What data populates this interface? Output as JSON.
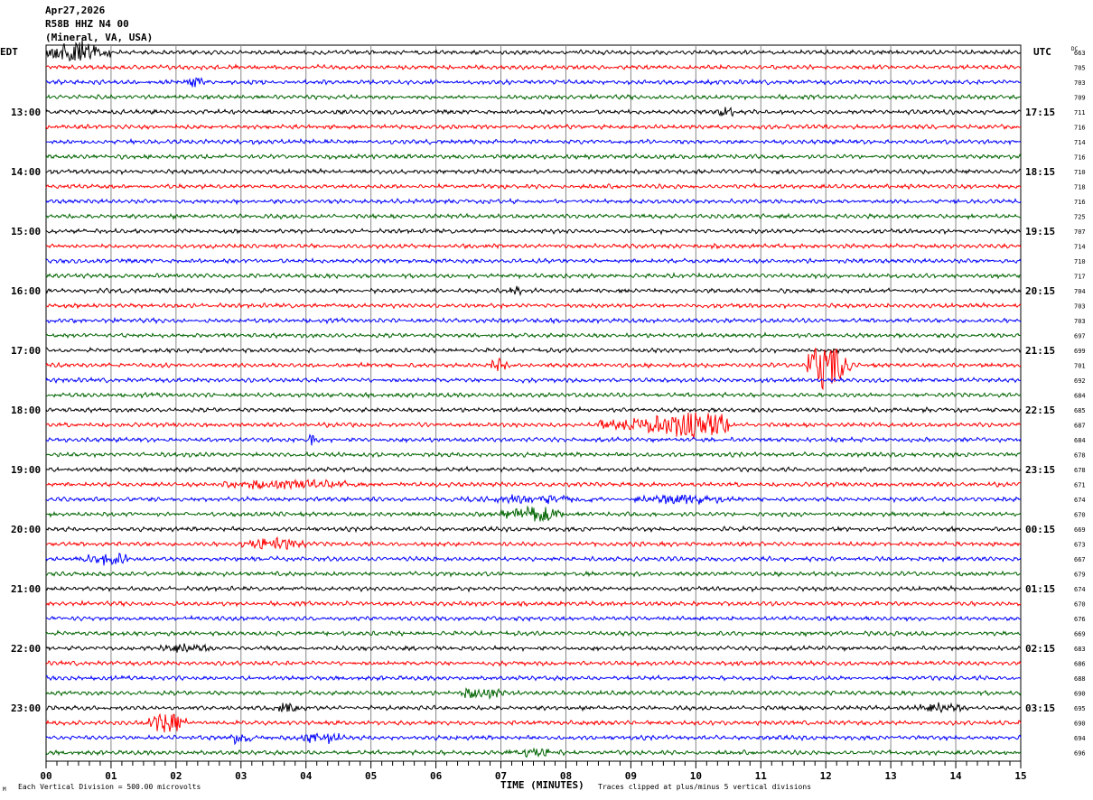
{
  "header": {
    "date": "Apr27,2026",
    "station": "R58B HHZ N4 00",
    "location": "(Mineral, VA, USA)",
    "left_tz": "EDT",
    "right_tz": "UTC",
    "dc_label": "DC"
  },
  "footer": {
    "scale_text": "Each Vertical Division =  500.00 microvolts",
    "xlabel": "TIME (MINUTES)",
    "clip_text": "Traces clipped at plus/minus 5 vertical divisions",
    "corner_mark": "M"
  },
  "chart_data": {
    "type": "line",
    "title": "R58B HHZ N4 00 (Mineral, VA, USA) Apr27,2026",
    "xlabel": "TIME (MINUTES)",
    "xlim": [
      0,
      15
    ],
    "x_ticks": [
      "00",
      "01",
      "02",
      "03",
      "04",
      "05",
      "06",
      "07",
      "08",
      "09",
      "10",
      "11",
      "12",
      "13",
      "14",
      "15"
    ],
    "trace_minutes": 15,
    "trace_count": 48,
    "colors": [
      "#000000",
      "#ff0000",
      "#0000ff",
      "#006400"
    ],
    "left_labels": [
      {
        "trace": 4,
        "text": "13:00"
      },
      {
        "trace": 8,
        "text": "14:00"
      },
      {
        "trace": 12,
        "text": "15:00"
      },
      {
        "trace": 16,
        "text": "16:00"
      },
      {
        "trace": 20,
        "text": "17:00"
      },
      {
        "trace": 24,
        "text": "18:00"
      },
      {
        "trace": 28,
        "text": "19:00"
      },
      {
        "trace": 32,
        "text": "20:00"
      },
      {
        "trace": 36,
        "text": "21:00"
      },
      {
        "trace": 40,
        "text": "22:00"
      },
      {
        "trace": 44,
        "text": "23:00"
      }
    ],
    "right_labels": [
      {
        "trace": 4,
        "text": "17:15"
      },
      {
        "trace": 8,
        "text": "18:15"
      },
      {
        "trace": 12,
        "text": "19:15"
      },
      {
        "trace": 16,
        "text": "20:15"
      },
      {
        "trace": 20,
        "text": "21:15"
      },
      {
        "trace": 24,
        "text": "22:15"
      },
      {
        "trace": 28,
        "text": "23:15"
      },
      {
        "trace": 32,
        "text": "00:15"
      },
      {
        "trace": 36,
        "text": "01:15"
      },
      {
        "trace": 40,
        "text": "02:15"
      },
      {
        "trace": 44,
        "text": "03:15"
      }
    ],
    "dc_offsets": [
      "663",
      "705",
      "703",
      "709",
      "711",
      "716",
      "714",
      "716",
      "710",
      "718",
      "716",
      "725",
      "707",
      "714",
      "710",
      "717",
      "704",
      "703",
      "703",
      "697",
      "699",
      "701",
      "692",
      "684",
      "685",
      "687",
      "684",
      "678",
      "678",
      "671",
      "674",
      "670",
      "669",
      "673",
      "667",
      "679",
      "674",
      "670",
      "676",
      "669",
      "683",
      "686",
      "688",
      "690",
      "695",
      "690",
      "694",
      "696"
    ],
    "events": [
      {
        "trace": 0,
        "start": 0.0,
        "end": 1.0,
        "amp": 4,
        "spike": 0.5
      },
      {
        "trace": 2,
        "start": 2.1,
        "end": 2.5,
        "amp": 2
      },
      {
        "trace": 4,
        "start": 10.3,
        "end": 10.6,
        "amp": 2
      },
      {
        "trace": 16,
        "start": 7.1,
        "end": 7.3,
        "amp": 2
      },
      {
        "trace": 21,
        "start": 11.7,
        "end": 12.4,
        "amp": 9,
        "spike": 12.0
      },
      {
        "trace": 21,
        "start": 6.8,
        "end": 7.1,
        "amp": 2.5
      },
      {
        "trace": 25,
        "start": 8.5,
        "end": 10.5,
        "amp": 4.5,
        "spike": 9.9
      },
      {
        "trace": 26,
        "start": 4.05,
        "end": 4.15,
        "amp": 3
      },
      {
        "trace": 29,
        "start": 2.4,
        "end": 5.0,
        "amp": 1.5
      },
      {
        "trace": 30,
        "start": 9.0,
        "end": 10.5,
        "amp": 1.8
      },
      {
        "trace": 30,
        "start": 6.5,
        "end": 8.5,
        "amp": 1.4
      },
      {
        "trace": 31,
        "start": 7.0,
        "end": 8.0,
        "amp": 3
      },
      {
        "trace": 33,
        "start": 3.0,
        "end": 4.0,
        "amp": 2.2
      },
      {
        "trace": 34,
        "start": 0.5,
        "end": 1.5,
        "amp": 1.8
      },
      {
        "trace": 40,
        "start": 1.7,
        "end": 2.6,
        "amp": 1.8
      },
      {
        "trace": 43,
        "start": 6.3,
        "end": 7.1,
        "amp": 2
      },
      {
        "trace": 44,
        "start": 3.5,
        "end": 3.9,
        "amp": 2
      },
      {
        "trace": 44,
        "start": 13.3,
        "end": 14.2,
        "amp": 1.8
      },
      {
        "trace": 45,
        "start": 1.5,
        "end": 2.2,
        "amp": 3.5
      },
      {
        "trace": 46,
        "start": 2.8,
        "end": 3.2,
        "amp": 2.5
      },
      {
        "trace": 46,
        "start": 3.9,
        "end": 4.6,
        "amp": 2
      },
      {
        "trace": 47,
        "start": 7.0,
        "end": 8.0,
        "amp": 1.5
      }
    ]
  }
}
